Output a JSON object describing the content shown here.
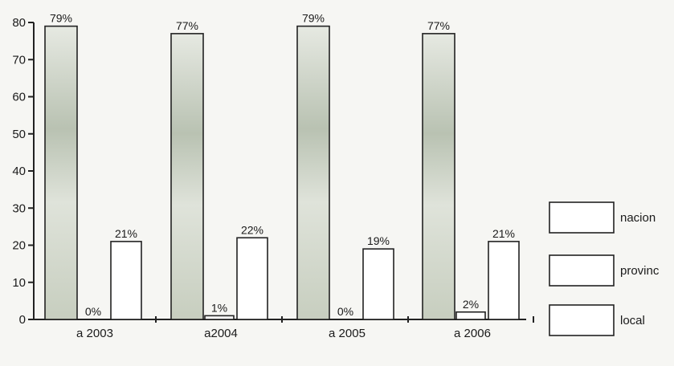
{
  "chart_data": {
    "type": "bar",
    "categories": [
      "a 2003",
      "a2004",
      "a 2005",
      "a 2006"
    ],
    "series": [
      {
        "name": "nacion",
        "values": [
          79,
          77,
          79,
          77
        ],
        "labels": [
          "79%",
          "77%",
          "79%",
          "77%"
        ]
      },
      {
        "name": "provinc",
        "values": [
          0,
          1,
          0,
          2
        ],
        "labels": [
          "0%",
          "1%",
          "0%",
          "2%"
        ]
      },
      {
        "name": "local",
        "values": [
          21,
          22,
          19,
          21
        ],
        "labels": [
          "21%",
          "22%",
          "19%",
          "21%"
        ]
      }
    ],
    "yticks": [
      "0",
      "10",
      "20",
      "30",
      "40",
      "50",
      "60",
      "70",
      "80"
    ],
    "ylim": [
      0,
      80
    ],
    "title": "",
    "xlabel": "",
    "ylabel": "",
    "legend_position": "right",
    "colors": {
      "nacion_fill": "#c9cfc3",
      "bar_fill": "#ffffff",
      "stroke": "#222222",
      "background": "#f6f6f3"
    }
  }
}
